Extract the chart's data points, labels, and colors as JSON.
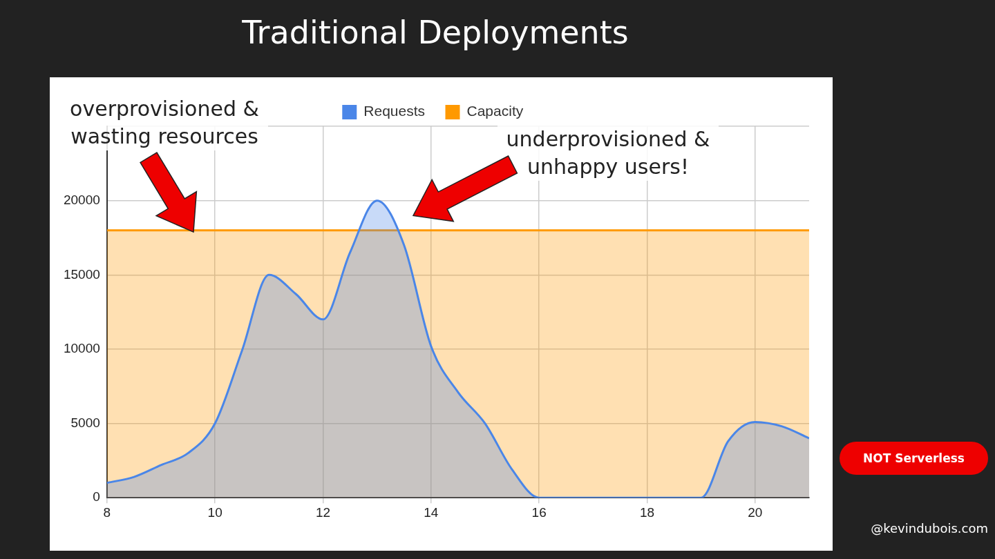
{
  "chart_data": {
    "type": "area",
    "title": "Traditional Deployments",
    "xlim": [
      8,
      21
    ],
    "xticks": [
      8,
      10,
      12,
      14,
      16,
      18,
      20
    ],
    "ylim": [
      0,
      25000
    ],
    "yticks": [
      0,
      5000,
      10000,
      15000,
      20000,
      {
        "value": 25000,
        "label": null
      }
    ],
    "grid": true,
    "legend": "top",
    "line_style": "solid",
    "marker": "none",
    "series": [
      {
        "name": "Requests",
        "color": "#4a86e8",
        "x": [
          8,
          8.5,
          9,
          9.5,
          10,
          10.5,
          11,
          11.5,
          12,
          12.5,
          13,
          13.5,
          14,
          14.5,
          15,
          15.5,
          16,
          17,
          18,
          19,
          19.5,
          20,
          20.5,
          21
        ],
        "values": [
          1000,
          1400,
          2200,
          3000,
          5000,
          9900,
          15000,
          13700,
          12000,
          16500,
          20000,
          17000,
          10200,
          7100,
          5000,
          1900,
          0,
          0,
          0,
          0,
          3800,
          5100,
          4800,
          4000
        ]
      },
      {
        "name": "Capacity",
        "color": "#ff9900",
        "x": [
          8,
          21
        ],
        "values": [
          18000,
          18000
        ]
      }
    ],
    "annotations": [
      "overprovisioned & wasting resources",
      "underprovisioned & unhappy users!",
      "NOT Serverless",
      "@kevindubois.com"
    ]
  }
}
